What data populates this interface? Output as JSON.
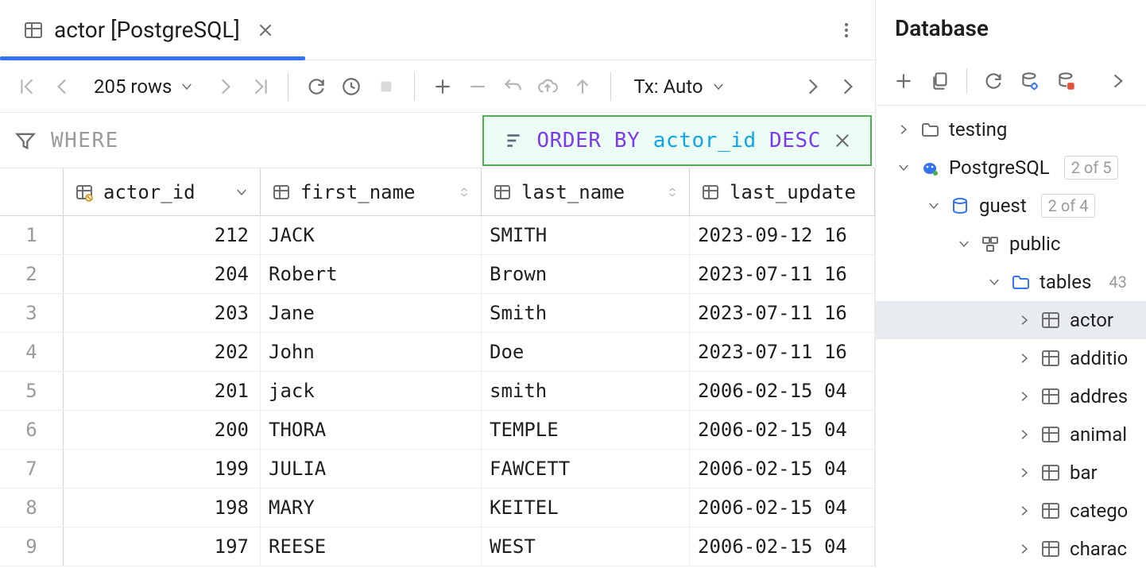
{
  "tab": {
    "title": "actor [PostgreSQL]"
  },
  "toolbar": {
    "row_count": "205 rows",
    "tx_mode": "Tx: Auto"
  },
  "filter": {
    "where_placeholder": "WHERE",
    "order": {
      "keyword": "ORDER BY",
      "column": "actor_id",
      "direction": "DESC"
    }
  },
  "columns": [
    {
      "name": "actor_id",
      "type": "pk",
      "sorted": "desc"
    },
    {
      "name": "first_name",
      "type": "text"
    },
    {
      "name": "last_name",
      "type": "text"
    },
    {
      "name": "last_update",
      "type": "text"
    }
  ],
  "rows": [
    {
      "n": 1,
      "actor_id": 212,
      "first_name": "JACK",
      "last_name": "SMITH",
      "last_update": "2023-09-12 16"
    },
    {
      "n": 2,
      "actor_id": 204,
      "first_name": "Robert",
      "last_name": "Brown",
      "last_update": "2023-07-11 16"
    },
    {
      "n": 3,
      "actor_id": 203,
      "first_name": "Jane",
      "last_name": "Smith",
      "last_update": "2023-07-11 16"
    },
    {
      "n": 4,
      "actor_id": 202,
      "first_name": "John",
      "last_name": "Doe",
      "last_update": "2023-07-11 16"
    },
    {
      "n": 5,
      "actor_id": 201,
      "first_name": "jack",
      "last_name": "smith",
      "last_update": "2006-02-15 04"
    },
    {
      "n": 6,
      "actor_id": 200,
      "first_name": "THORA",
      "last_name": "TEMPLE",
      "last_update": "2006-02-15 04"
    },
    {
      "n": 7,
      "actor_id": 199,
      "first_name": "JULIA",
      "last_name": "FAWCETT",
      "last_update": "2006-02-15 04"
    },
    {
      "n": 8,
      "actor_id": 198,
      "first_name": "MARY",
      "last_name": "KEITEL",
      "last_update": "2006-02-15 04"
    },
    {
      "n": 9,
      "actor_id": 197,
      "first_name": "REESE",
      "last_name": "WEST",
      "last_update": "2006-02-15 04"
    }
  ],
  "sidebar": {
    "title": "Database",
    "tree": {
      "testing": "testing",
      "postgresql": {
        "label": "PostgreSQL",
        "badge": "2 of 5"
      },
      "guest": {
        "label": "guest",
        "badge": "2 of 4"
      },
      "public": "public",
      "tables": {
        "label": "tables",
        "badge": "43"
      },
      "items": [
        "actor",
        "additio",
        "addres",
        "animal",
        "bar",
        "catego",
        "charac"
      ]
    }
  },
  "colors": {
    "accent": "#3574f0",
    "order_border": "#4caf50",
    "order_bg": "#ecfdf5",
    "kw": "#7c3aed",
    "col": "#0ea5e9"
  }
}
